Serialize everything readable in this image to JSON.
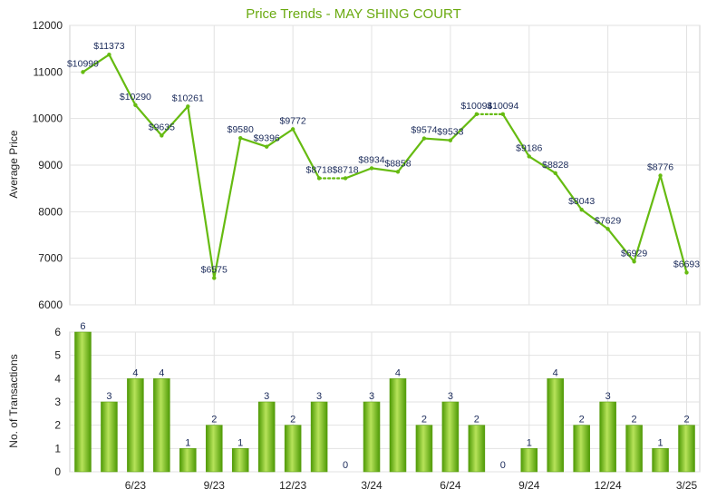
{
  "title": "Price Trends - MAY SHING COURT",
  "colors": {
    "line": "#66bb11",
    "bar_light": "#b7e35a",
    "bar_dark": "#4e9a06",
    "label": "#1a2a5a",
    "title": "#6aaa10",
    "grid": "#e2e2e2"
  },
  "chart_data": [
    {
      "type": "line",
      "ylabel": "Average Price",
      "ylim": [
        6000,
        12000
      ],
      "yticks": [
        6000,
        7000,
        8000,
        9000,
        10000,
        11000,
        12000
      ],
      "ytick_labels": [
        "6000",
        "7000",
        "8000",
        "9000",
        "10000",
        "11000",
        "12000"
      ],
      "grid": true,
      "x": [
        "2023-04",
        "2023-05",
        "2023-06",
        "2023-07",
        "2023-08",
        "2023-09",
        "2023-10",
        "2023-11",
        "2023-12",
        "2024-01",
        "2024-02",
        "2024-03",
        "2024-04",
        "2024-05",
        "2024-06",
        "2024-07",
        "2024-08",
        "2024-09",
        "2024-10",
        "2024-11",
        "2024-12",
        "2025-01",
        "2025-02",
        "2025-03"
      ],
      "values": [
        10999,
        11373,
        10290,
        9635,
        10261,
        6575,
        9580,
        9396,
        9772,
        8718,
        8718,
        8934,
        8858,
        9574,
        9533,
        10094,
        10094,
        9186,
        8828,
        8043,
        7629,
        6929,
        8776,
        6693
      ],
      "data_labels": [
        "$10999",
        "$11373",
        "$10290",
        "$9635",
        "$10261",
        "$6575",
        "$9580",
        "$9396",
        "$9772",
        "$8718",
        "$8718",
        "$8934",
        "$8858",
        "$9574",
        "$9533",
        "$10094",
        "$10094",
        "$9186",
        "$8828",
        "$8043",
        "$7629",
        "$6929",
        "$8776",
        "$6693"
      ],
      "dotted_segments": [
        [
          9,
          10
        ],
        [
          15,
          16
        ]
      ]
    },
    {
      "type": "bar",
      "ylabel": "No. of Transactions",
      "ylim": [
        0,
        6
      ],
      "yticks": [
        0,
        1,
        2,
        3,
        4,
        5,
        6
      ],
      "ytick_labels": [
        "0",
        "1",
        "2",
        "3",
        "4",
        "5",
        "6"
      ],
      "grid": true,
      "x": [
        "2023-04",
        "2023-05",
        "2023-06",
        "2023-07",
        "2023-08",
        "2023-09",
        "2023-10",
        "2023-11",
        "2023-12",
        "2024-01",
        "2024-02",
        "2024-03",
        "2024-04",
        "2024-05",
        "2024-06",
        "2024-07",
        "2024-08",
        "2024-09",
        "2024-10",
        "2024-11",
        "2024-12",
        "2025-01",
        "2025-02",
        "2025-03"
      ],
      "values": [
        6,
        3,
        4,
        4,
        1,
        2,
        1,
        3,
        2,
        3,
        0,
        3,
        4,
        2,
        3,
        2,
        0,
        1,
        4,
        2,
        3,
        2,
        1,
        2
      ],
      "data_labels": [
        "6",
        "3",
        "4",
        "4",
        "1",
        "2",
        "1",
        "3",
        "2",
        "3",
        "0",
        "3",
        "4",
        "2",
        "3",
        "2",
        "0",
        "1",
        "4",
        "2",
        "3",
        "2",
        "1",
        "2"
      ],
      "xtick_labels": [
        {
          "index": 2,
          "label": "6/23"
        },
        {
          "index": 5,
          "label": "9/23"
        },
        {
          "index": 8,
          "label": "12/23"
        },
        {
          "index": 11,
          "label": "3/24"
        },
        {
          "index": 14,
          "label": "6/24"
        },
        {
          "index": 17,
          "label": "9/24"
        },
        {
          "index": 20,
          "label": "12/24"
        },
        {
          "index": 23,
          "label": "3/25"
        }
      ]
    }
  ]
}
